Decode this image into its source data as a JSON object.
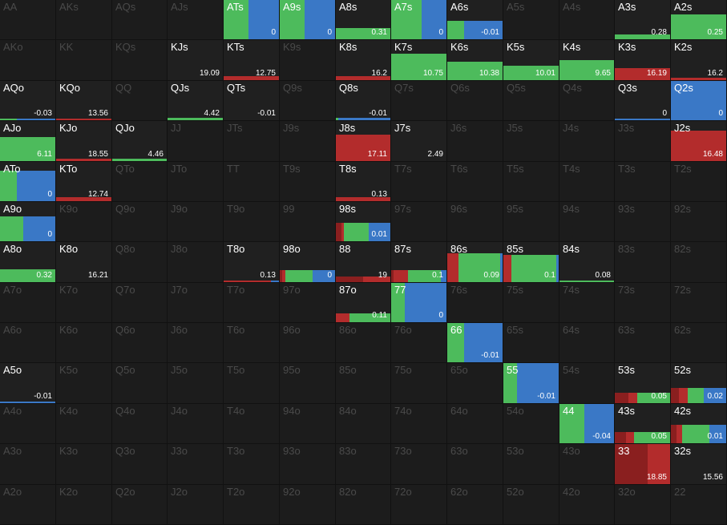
{
  "colors": {
    "fold": "#3a78c6",
    "call": "#4dbb5c",
    "raise": "#b32c2c",
    "raise_dark": "#8a1f1f",
    "empty": "#1c1c1c",
    "active_label": "#ffffff",
    "inactive_label": "#4a4a4a"
  },
  "rows": [
    [
      {
        "label": "AA"
      },
      {
        "label": "AKs"
      },
      {
        "label": "AQs"
      },
      {
        "label": "AJs"
      },
      {
        "label": "ATs",
        "active": true,
        "value": "0",
        "fill": 1,
        "mix": {
          "fold": 0.55,
          "call": 0.45
        }
      },
      {
        "label": "A9s",
        "active": true,
        "value": "0",
        "fill": 1,
        "mix": {
          "fold": 0.55,
          "call": 0.45
        }
      },
      {
        "label": "A8s",
        "active": true,
        "value": "0.31",
        "fill": 0.28,
        "mix": {
          "call": 1
        }
      },
      {
        "label": "A7s",
        "active": true,
        "value": "0",
        "fill": 1,
        "mix": {
          "fold": 0.45,
          "call": 0.55
        }
      },
      {
        "label": "A6s",
        "active": true,
        "value": "-0.01",
        "fill": 0.45,
        "mix": {
          "fold": 0.7,
          "call": 0.3
        }
      },
      {
        "label": "A5s"
      },
      {
        "label": "A4s"
      },
      {
        "label": "A3s",
        "active": true,
        "value": "0.28",
        "fill": 0.12,
        "mix": {
          "call": 1
        }
      },
      {
        "label": "A2s",
        "active": true,
        "value": "0.25",
        "fill": 0.62,
        "mix": {
          "call": 1
        }
      }
    ],
    [
      {
        "label": "AKo"
      },
      {
        "label": "KK"
      },
      {
        "label": "KQs"
      },
      {
        "label": "KJs",
        "active": true,
        "value": "19.09",
        "fill": 0,
        "mix": {}
      },
      {
        "label": "KTs",
        "active": true,
        "value": "12.75",
        "fill": 0.1,
        "mix": {
          "raise": 1
        }
      },
      {
        "label": "K9s"
      },
      {
        "label": "K8s",
        "active": true,
        "value": "16.2",
        "fill": 0.1,
        "mix": {
          "raise": 1
        }
      },
      {
        "label": "K7s",
        "active": true,
        "value": "10.75",
        "fill": 0.65,
        "mix": {
          "call": 1
        }
      },
      {
        "label": "K6s",
        "active": true,
        "value": "10.38",
        "fill": 0.45,
        "mix": {
          "call": 1
        }
      },
      {
        "label": "K5s",
        "active": true,
        "value": "10.01",
        "fill": 0.35,
        "mix": {
          "call": 1
        }
      },
      {
        "label": "K4s",
        "active": true,
        "value": "9.65",
        "fill": 0.5,
        "mix": {
          "call": 1
        }
      },
      {
        "label": "K3s",
        "active": true,
        "value": "16.19",
        "fill": 0.3,
        "mix": {
          "raise": 1
        }
      },
      {
        "label": "K2s",
        "active": true,
        "value": "16.2",
        "fill": 0.05,
        "mix": {
          "raise": 1
        }
      }
    ],
    [
      {
        "label": "AQo",
        "active": true,
        "value": "-0.03",
        "fill": 0.04,
        "mix": {
          "call": 0.3,
          "fold": 0.7
        }
      },
      {
        "label": "KQo",
        "active": true,
        "value": "13.56",
        "fill": 0.04,
        "mix": {
          "raise": 1
        }
      },
      {
        "label": "QQ"
      },
      {
        "label": "QJs",
        "active": true,
        "value": "4.42",
        "fill": 0.06,
        "mix": {
          "call": 1
        }
      },
      {
        "label": "QTs",
        "active": true,
        "value": "-0.01",
        "fill": 0,
        "mix": {}
      },
      {
        "label": "Q9s"
      },
      {
        "label": "Q8s",
        "active": true,
        "value": "-0.01",
        "fill": 0.06,
        "mix": {
          "call": 0.05,
          "fold": 0.95
        }
      },
      {
        "label": "Q7s"
      },
      {
        "label": "Q6s"
      },
      {
        "label": "Q5s"
      },
      {
        "label": "Q4s"
      },
      {
        "label": "Q3s",
        "active": true,
        "value": "0",
        "fill": 0.04,
        "mix": {
          "fold": 1
        }
      },
      {
        "label": "Q2s",
        "active": true,
        "value": "0",
        "fill": 1,
        "mix": {
          "fold": 1
        }
      }
    ],
    [
      {
        "label": "AJo",
        "active": true,
        "value": "6.11",
        "fill": 0.6,
        "mix": {
          "call": 1
        }
      },
      {
        "label": "KJo",
        "active": true,
        "value": "18.55",
        "fill": 0.06,
        "mix": {
          "raise": 1
        }
      },
      {
        "label": "QJo",
        "active": true,
        "value": "4.46",
        "fill": 0.06,
        "mix": {
          "call": 1
        }
      },
      {
        "label": "JJ"
      },
      {
        "label": "JTs"
      },
      {
        "label": "J9s"
      },
      {
        "label": "J8s",
        "active": true,
        "value": "17.11",
        "fill": 0.65,
        "mix": {
          "raise": 1
        }
      },
      {
        "label": "J7s",
        "active": true,
        "value": "2.49",
        "fill": 0,
        "mix": {}
      },
      {
        "label": "J6s"
      },
      {
        "label": "J5s"
      },
      {
        "label": "J4s"
      },
      {
        "label": "J3s"
      },
      {
        "label": "J2s",
        "active": true,
        "value": "16.48",
        "fill": 0.75,
        "mix": {
          "raise": 1
        }
      }
    ],
    [
      {
        "label": "ATo",
        "active": true,
        "value": "0",
        "fill": 0.75,
        "mix": {
          "call": 0.3,
          "fold": 0.7
        }
      },
      {
        "label": "KTo",
        "active": true,
        "value": "12.74",
        "fill": 0.1,
        "mix": {
          "raise": 1
        }
      },
      {
        "label": "QTo"
      },
      {
        "label": "JTo"
      },
      {
        "label": "TT"
      },
      {
        "label": "T9s"
      },
      {
        "label": "T8s",
        "active": true,
        "value": "0.13",
        "fill": 0.1,
        "mix": {
          "raise": 1
        }
      },
      {
        "label": "T7s"
      },
      {
        "label": "T6s"
      },
      {
        "label": "T5s"
      },
      {
        "label": "T4s"
      },
      {
        "label": "T3s"
      },
      {
        "label": "T2s"
      }
    ],
    [
      {
        "label": "A9o",
        "active": true,
        "value": "0",
        "fill": 0.62,
        "mix": {
          "call": 0.42,
          "fold": 0.58
        }
      },
      {
        "label": "K9o"
      },
      {
        "label": "Q9o"
      },
      {
        "label": "J9o"
      },
      {
        "label": "T9o"
      },
      {
        "label": "99"
      },
      {
        "label": "98s",
        "active": true,
        "value": "0.01",
        "fill": 0.45,
        "mix": {
          "raise_dark": 0.1,
          "raise": 0.05,
          "call": 0.45,
          "fold": 0.4
        }
      },
      {
        "label": "97s"
      },
      {
        "label": "96s"
      },
      {
        "label": "95s"
      },
      {
        "label": "94s"
      },
      {
        "label": "93s"
      },
      {
        "label": "92s"
      }
    ],
    [
      {
        "label": "A8o",
        "active": true,
        "value": "0.32",
        "fill": 0.32,
        "mix": {
          "call": 1
        }
      },
      {
        "label": "K8o",
        "active": true,
        "value": "16.21",
        "fill": 0,
        "mix": {}
      },
      {
        "label": "Q8o"
      },
      {
        "label": "J8o"
      },
      {
        "label": "T8o",
        "active": true,
        "value": "0.13",
        "fill": 0.04,
        "mix": {
          "raise": 0.85,
          "fold": 0.15
        }
      },
      {
        "label": "98o",
        "active": true,
        "value": "0",
        "fill": 0.3,
        "mix": {
          "raise_dark": 0.05,
          "raise": 0.05,
          "call": 0.5,
          "fold": 0.4
        }
      },
      {
        "label": "88",
        "active": true,
        "value": "19",
        "fill": 0.14,
        "mix": {
          "raise_dark": 0.5,
          "raise": 0.5
        }
      },
      {
        "label": "87s",
        "active": true,
        "value": "0.1",
        "fill": 0.3,
        "mix": {
          "raise": 0.25,
          "raise_dark": 0.05,
          "call": 0.6,
          "fold": 0.1
        }
      },
      {
        "label": "86s",
        "active": true,
        "value": "0.09",
        "fill": 0.72,
        "mix": {
          "raise": 0.2,
          "call": 0.75,
          "fold": 0.05
        }
      },
      {
        "label": "85s",
        "active": true,
        "value": "0.1",
        "fill": 0.68,
        "mix": {
          "raise": 0.15,
          "call": 0.8,
          "fold": 0.05
        }
      },
      {
        "label": "84s",
        "active": true,
        "value": "0.08",
        "fill": 0.04,
        "mix": {
          "call": 1
        }
      },
      {
        "label": "83s"
      },
      {
        "label": "82s"
      }
    ],
    [
      {
        "label": "A7o"
      },
      {
        "label": "K7o"
      },
      {
        "label": "Q7o"
      },
      {
        "label": "J7o"
      },
      {
        "label": "T7o"
      },
      {
        "label": "97o"
      },
      {
        "label": "87o",
        "active": true,
        "value": "0.11",
        "fill": 0.22,
        "mix": {
          "raise": 0.25,
          "call": 0.75
        }
      },
      {
        "label": "77",
        "active": true,
        "value": "0",
        "fill": 1,
        "mix": {
          "call": 0.25,
          "fold": 0.75
        }
      },
      {
        "label": "76s"
      },
      {
        "label": "75s"
      },
      {
        "label": "74s"
      },
      {
        "label": "73s"
      },
      {
        "label": "72s"
      }
    ],
    [
      {
        "label": "A6o"
      },
      {
        "label": "K6o"
      },
      {
        "label": "Q6o"
      },
      {
        "label": "J6o"
      },
      {
        "label": "T6o"
      },
      {
        "label": "96o"
      },
      {
        "label": "86o"
      },
      {
        "label": "76o"
      },
      {
        "label": "66",
        "active": true,
        "value": "-0.01",
        "fill": 1,
        "mix": {
          "call": 0.3,
          "fold": 0.7
        }
      },
      {
        "label": "65s"
      },
      {
        "label": "64s"
      },
      {
        "label": "63s"
      },
      {
        "label": "62s"
      }
    ],
    [
      {
        "label": "A5o",
        "active": true,
        "value": "-0.01",
        "fill": 0.03,
        "mix": {
          "fold": 1
        }
      },
      {
        "label": "K5o"
      },
      {
        "label": "Q5o"
      },
      {
        "label": "J5o"
      },
      {
        "label": "T5o"
      },
      {
        "label": "95o"
      },
      {
        "label": "85o"
      },
      {
        "label": "75o"
      },
      {
        "label": "65o"
      },
      {
        "label": "55",
        "active": true,
        "value": "-0.01",
        "fill": 1,
        "mix": {
          "call": 0.25,
          "fold": 0.75
        }
      },
      {
        "label": "54s"
      },
      {
        "label": "53s",
        "active": true,
        "value": "0.05",
        "fill": 0.26,
        "mix": {
          "raise_dark": 0.25,
          "raise": 0.15,
          "call": 0.6
        }
      },
      {
        "label": "52s",
        "active": true,
        "value": "0.02",
        "fill": 0.38,
        "mix": {
          "raise_dark": 0.15,
          "raise": 0.15,
          "call": 0.3,
          "fold": 0.4
        }
      }
    ],
    [
      {
        "label": "A4o"
      },
      {
        "label": "K4o"
      },
      {
        "label": "Q4o"
      },
      {
        "label": "J4o"
      },
      {
        "label": "T4o"
      },
      {
        "label": "94o"
      },
      {
        "label": "84o"
      },
      {
        "label": "74o"
      },
      {
        "label": "64o"
      },
      {
        "label": "54o"
      },
      {
        "label": "44",
        "active": true,
        "value": "-0.04",
        "fill": 1,
        "mix": {
          "call": 0.45,
          "fold": 0.55
        }
      },
      {
        "label": "43s",
        "active": true,
        "value": "0.05",
        "fill": 0.28,
        "mix": {
          "raise_dark": 0.2,
          "raise": 0.15,
          "call": 0.65
        }
      },
      {
        "label": "42s",
        "active": true,
        "value": "0.01",
        "fill": 0.45,
        "mix": {
          "raise_dark": 0.1,
          "raise": 0.1,
          "call": 0.5,
          "fold": 0.3
        }
      }
    ],
    [
      {
        "label": "A3o"
      },
      {
        "label": "K3o"
      },
      {
        "label": "Q3o"
      },
      {
        "label": "J3o"
      },
      {
        "label": "T3o"
      },
      {
        "label": "93o"
      },
      {
        "label": "83o"
      },
      {
        "label": "73o"
      },
      {
        "label": "63o"
      },
      {
        "label": "53o"
      },
      {
        "label": "43o"
      },
      {
        "label": "33",
        "active": true,
        "value": "18.85",
        "fill": 1,
        "mix": {
          "raise_dark": 0.6,
          "raise": 0.4
        }
      },
      {
        "label": "32s",
        "active": true,
        "value": "15.56",
        "fill": 0,
        "mix": {}
      }
    ],
    [
      {
        "label": "A2o"
      },
      {
        "label": "K2o"
      },
      {
        "label": "Q2o"
      },
      {
        "label": "J2o"
      },
      {
        "label": "T2o"
      },
      {
        "label": "92o"
      },
      {
        "label": "82o"
      },
      {
        "label": "72o"
      },
      {
        "label": "62o"
      },
      {
        "label": "52o"
      },
      {
        "label": "42o"
      },
      {
        "label": "32o"
      },
      {
        "label": "22"
      }
    ]
  ]
}
